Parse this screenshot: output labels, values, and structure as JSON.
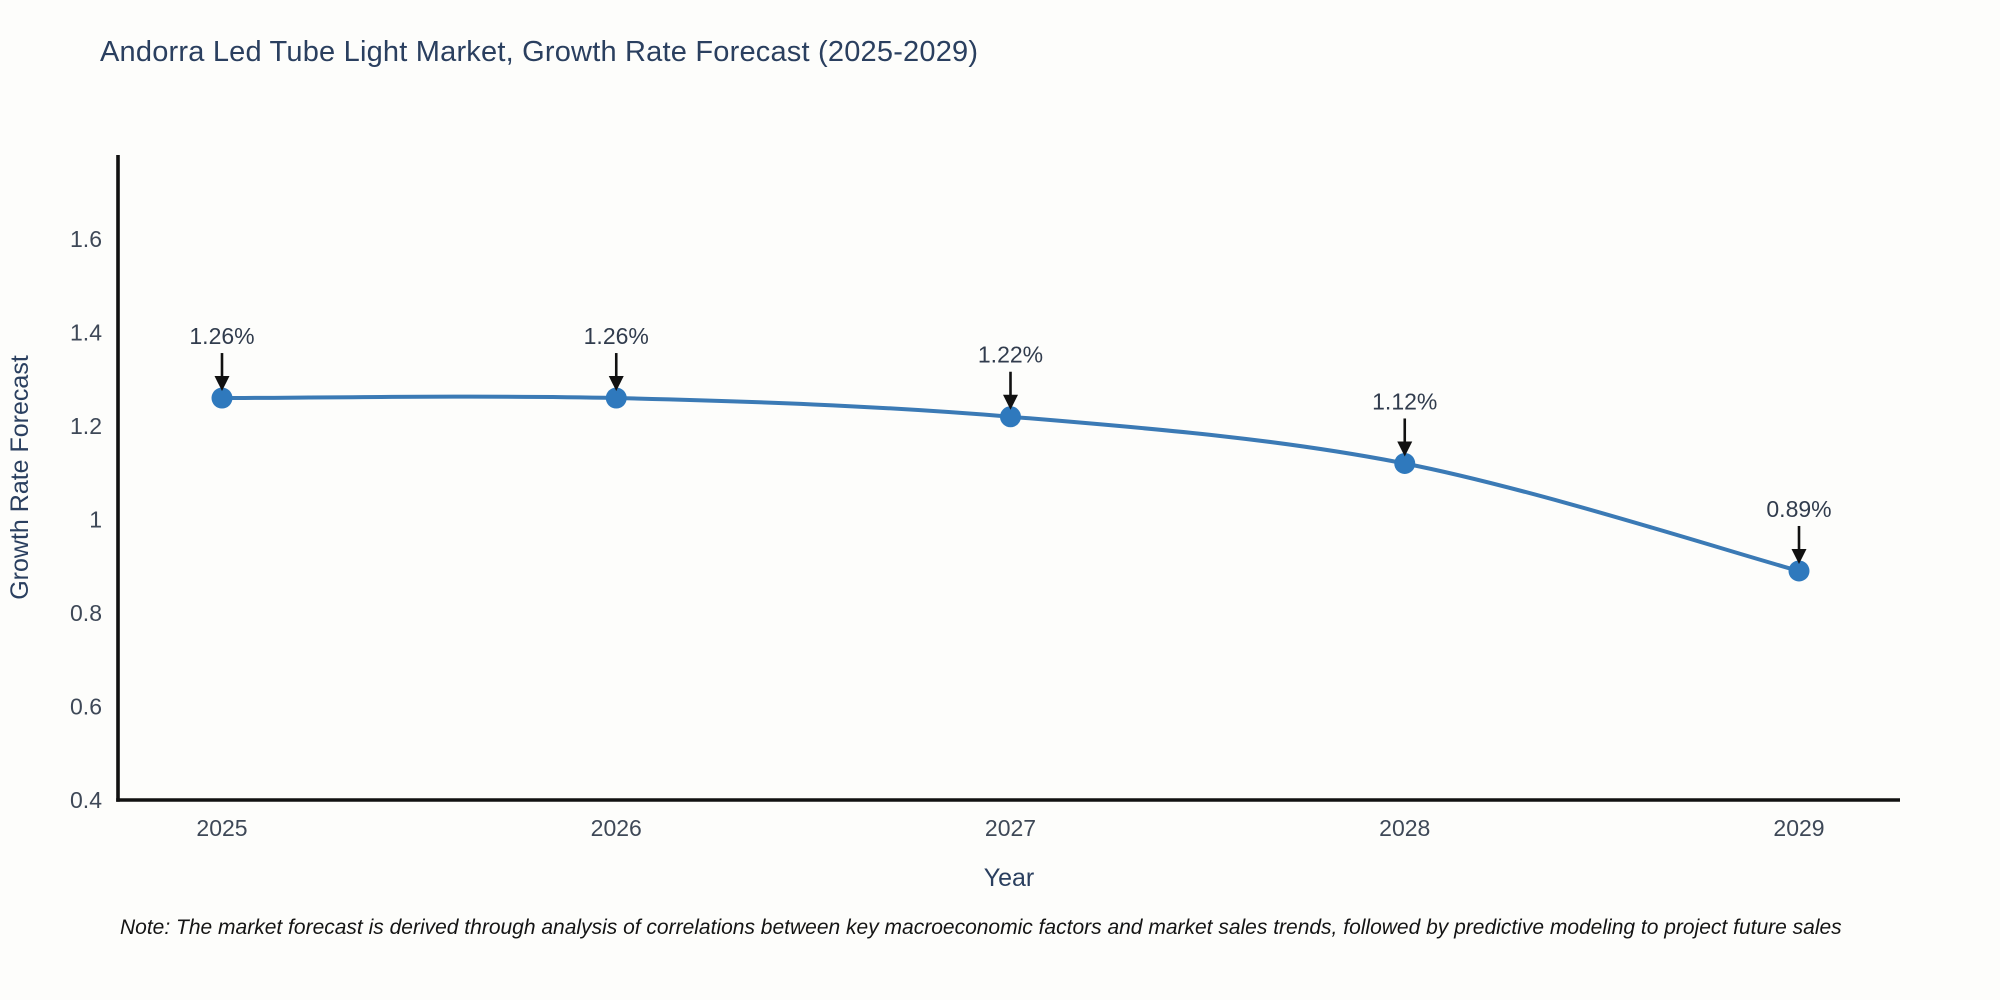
{
  "title": "Andorra Led Tube Light Market, Growth Rate Forecast (2025-2029)",
  "note": "Note: The market forecast is derived through analysis of correlations between key macroeconomic factors and market sales trends, followed by predictive modeling to project future sales",
  "chart_data": {
    "type": "line",
    "line_shape": "spline",
    "categories": [
      "2025",
      "2026",
      "2027",
      "2028",
      "2029"
    ],
    "values": [
      1.26,
      1.26,
      1.22,
      1.12,
      0.89
    ],
    "point_labels": [
      "1.26%",
      "1.26%",
      "1.22%",
      "1.12%",
      "0.89%"
    ],
    "title": "Andorra Led Tube Light Market, Growth Rate Forecast (2025-2029)",
    "xlabel": "Year",
    "ylabel": "Growth Rate Forecast",
    "ytick_labels": [
      "0.4",
      "0.6",
      "0.8",
      "1",
      "1.2",
      "1.4",
      "1.6"
    ],
    "yticks": [
      0.4,
      0.6,
      0.8,
      1.0,
      1.2,
      1.4,
      1.6
    ],
    "ylim": [
      0.4,
      1.78
    ],
    "grid": false,
    "legend": "none",
    "colors": {
      "line": "#3b7ab5",
      "marker": "#2f79bd",
      "axis": "#111111",
      "title_text": "#2a3f5f",
      "axis_label_text": "#2a3f5f",
      "tick_text": "#3e4857",
      "annotation_text": "#313c4d",
      "arrow": "#111111",
      "background": "#fdfdfb"
    }
  }
}
